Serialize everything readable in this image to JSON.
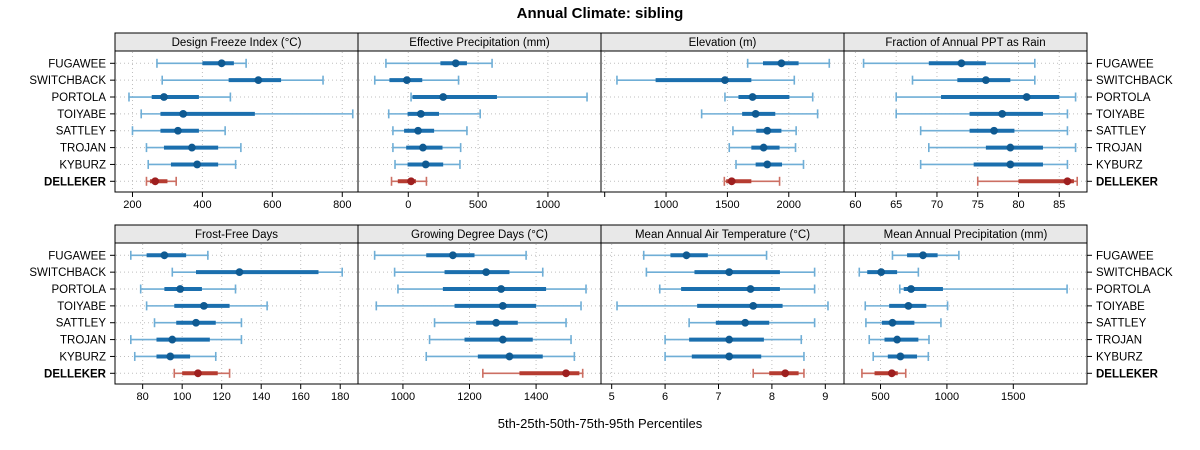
{
  "title": "Annual Climate: sibling",
  "xlabel": "5th-25th-50th-75th-95th Percentiles",
  "stations": [
    "FUGAWEE",
    "SWITCHBACK",
    "PORTOLA",
    "TOIYABE",
    "SATTLEY",
    "TROJAN",
    "KYBURZ",
    "DELLEKER"
  ],
  "highlight_station": "DELLEKER",
  "colors": {
    "normal": {
      "line": "#6faed6",
      "bar": "#1b6fae",
      "dot": "#0f5a92"
    },
    "highlight": {
      "line": "#cc6f63",
      "bar": "#b63c31",
      "dot": "#9e1f1f"
    },
    "grid": "#bfbfbf",
    "strip_bg": "#e8e8e8",
    "border": "#000000"
  },
  "chart_data": {
    "type": "percentile-dotplot",
    "percentiles": [
      5,
      25,
      50,
      75,
      95
    ],
    "grid": true,
    "legend_position": "none",
    "panels": [
      {
        "title": "Design Freeze Index (°C)",
        "row": 0,
        "col": 0,
        "xlim": [
          150,
          845
        ],
        "ticks": [
          200,
          400,
          600,
          800
        ],
        "tick_labels": [
          "200",
          "400",
          "600",
          "800"
        ],
        "minor_ticks": [],
        "values": [
          [
            270,
            400,
            455,
            490,
            525
          ],
          [
            285,
            475,
            560,
            625,
            745
          ],
          [
            190,
            255,
            290,
            390,
            480
          ],
          [
            225,
            280,
            345,
            550,
            830
          ],
          [
            200,
            280,
            330,
            390,
            465
          ],
          [
            240,
            290,
            370,
            445,
            510
          ],
          [
            245,
            310,
            385,
            445,
            495
          ],
          [
            240,
            250,
            265,
            300,
            325
          ]
        ]
      },
      {
        "title": "Effective Precipitation (mm)",
        "row": 0,
        "col": 1,
        "xlim": [
          -360,
          1380
        ],
        "ticks": [
          0,
          500,
          1000
        ],
        "tick_labels": [
          "0",
          "500",
          "1000"
        ],
        "minor_ticks": [],
        "values": [
          [
            -160,
            230,
            340,
            420,
            600
          ],
          [
            -240,
            -135,
            -10,
            100,
            360
          ],
          [
            20,
            30,
            250,
            635,
            1280
          ],
          [
            -140,
            -5,
            90,
            220,
            515
          ],
          [
            -110,
            -30,
            70,
            185,
            420
          ],
          [
            -110,
            -15,
            105,
            245,
            375
          ],
          [
            -95,
            -5,
            125,
            250,
            370
          ],
          [
            -120,
            -75,
            20,
            55,
            130
          ]
        ]
      },
      {
        "title": "Elevation (m)",
        "row": 0,
        "col": 2,
        "xlim": [
          470,
          2450
        ],
        "ticks": [
          1000,
          1500,
          2000
        ],
        "tick_labels": [
          "1000",
          "1500",
          "2000"
        ],
        "minor_ticks": [
          500
        ],
        "values": [
          [
            1665,
            1790,
            1940,
            2080,
            2330
          ],
          [
            600,
            915,
            1480,
            1695,
            2045
          ],
          [
            1480,
            1590,
            1705,
            2005,
            2195
          ],
          [
            1290,
            1620,
            1730,
            1890,
            2235
          ],
          [
            1545,
            1735,
            1825,
            1940,
            2060
          ],
          [
            1515,
            1695,
            1795,
            1925,
            2055
          ],
          [
            1570,
            1730,
            1825,
            1945,
            2120
          ],
          [
            1475,
            1490,
            1535,
            1695,
            1925
          ]
        ]
      },
      {
        "title": "Fraction of Annual PPT as Rain",
        "row": 0,
        "col": 3,
        "xlim": [
          58.6,
          88.4
        ],
        "ticks": [
          60,
          65,
          70,
          75,
          80,
          85
        ],
        "tick_labels": [
          "60",
          "65",
          "70",
          "75",
          "80",
          "85"
        ],
        "minor_ticks": [],
        "values": [
          [
            61,
            69,
            73,
            76,
            82
          ],
          [
            67,
            72.5,
            76,
            79,
            82
          ],
          [
            65,
            70.5,
            81,
            85,
            87
          ],
          [
            65,
            74,
            78,
            83,
            86
          ],
          [
            68,
            74,
            77,
            79.5,
            86
          ],
          [
            69,
            76,
            79,
            83,
            87
          ],
          [
            68,
            74.5,
            79,
            83,
            86
          ],
          [
            75,
            80,
            86,
            86.8,
            87.2
          ]
        ]
      },
      {
        "title": "Frost-Free Days",
        "row": 1,
        "col": 0,
        "xlim": [
          66,
          189
        ],
        "ticks": [
          80,
          100,
          120,
          140,
          160,
          180
        ],
        "tick_labels": [
          "80",
          "100",
          "120",
          "140",
          "160",
          "180"
        ],
        "minor_ticks": [],
        "values": [
          [
            74,
            82,
            91,
            102,
            113
          ],
          [
            95,
            107,
            129,
            169,
            181
          ],
          [
            79,
            91,
            99,
            110,
            127
          ],
          [
            82,
            96,
            111,
            124,
            143
          ],
          [
            86,
            97,
            107,
            117,
            130
          ],
          [
            74,
            87,
            95,
            114,
            130
          ],
          [
            76,
            87,
            94,
            104,
            117
          ],
          [
            96,
            100,
            108,
            118,
            124
          ]
        ]
      },
      {
        "title": "Growing Degree Days (°C)",
        "row": 1,
        "col": 1,
        "xlim": [
          865,
          1595
        ],
        "ticks": [
          1000,
          1200,
          1400
        ],
        "tick_labels": [
          "1000",
          "1200",
          "1400"
        ],
        "minor_ticks": [],
        "values": [
          [
            915,
            1070,
            1150,
            1215,
            1370
          ],
          [
            975,
            1125,
            1250,
            1320,
            1420
          ],
          [
            985,
            1120,
            1295,
            1430,
            1550
          ],
          [
            920,
            1155,
            1300,
            1400,
            1535
          ],
          [
            1095,
            1220,
            1280,
            1345,
            1490
          ],
          [
            1080,
            1185,
            1300,
            1390,
            1505
          ],
          [
            1070,
            1225,
            1320,
            1420,
            1515
          ],
          [
            1240,
            1350,
            1490,
            1530,
            1540
          ]
        ]
      },
      {
        "title": "Mean Annual Air Temperature (°C)",
        "row": 1,
        "col": 2,
        "xlim": [
          4.8,
          9.35
        ],
        "ticks": [
          5,
          6,
          7,
          8,
          9
        ],
        "tick_labels": [
          "5",
          "6",
          "7",
          "8",
          "9"
        ],
        "minor_ticks": [],
        "values": [
          [
            5.6,
            6.1,
            6.4,
            6.8,
            7.9
          ],
          [
            5.65,
            6.55,
            7.2,
            8.15,
            8.8
          ],
          [
            5.9,
            6.3,
            7.6,
            8.15,
            8.8
          ],
          [
            5.1,
            6.6,
            7.65,
            8.2,
            9.05
          ],
          [
            6.45,
            6.95,
            7.5,
            7.95,
            8.8
          ],
          [
            6.0,
            6.45,
            7.2,
            7.85,
            8.55
          ],
          [
            6.0,
            6.5,
            7.2,
            7.8,
            8.6
          ],
          [
            7.65,
            7.95,
            8.25,
            8.5,
            8.6
          ]
        ]
      },
      {
        "title": "Mean Annual Precipitation (mm)",
        "row": 1,
        "col": 3,
        "xlim": [
          225,
          2055
        ],
        "ticks": [
          500,
          1000,
          1500
        ],
        "tick_labels": [
          "500",
          "1000",
          "1500"
        ],
        "minor_ticks": [],
        "values": [
          [
            590,
            700,
            820,
            930,
            1090
          ],
          [
            340,
            400,
            505,
            625,
            785
          ],
          [
            645,
            675,
            730,
            970,
            1905
          ],
          [
            385,
            565,
            710,
            845,
            1005
          ],
          [
            390,
            510,
            590,
            755,
            955
          ],
          [
            415,
            530,
            625,
            785,
            865
          ],
          [
            445,
            555,
            650,
            775,
            860
          ],
          [
            360,
            455,
            585,
            630,
            690
          ]
        ]
      }
    ]
  }
}
